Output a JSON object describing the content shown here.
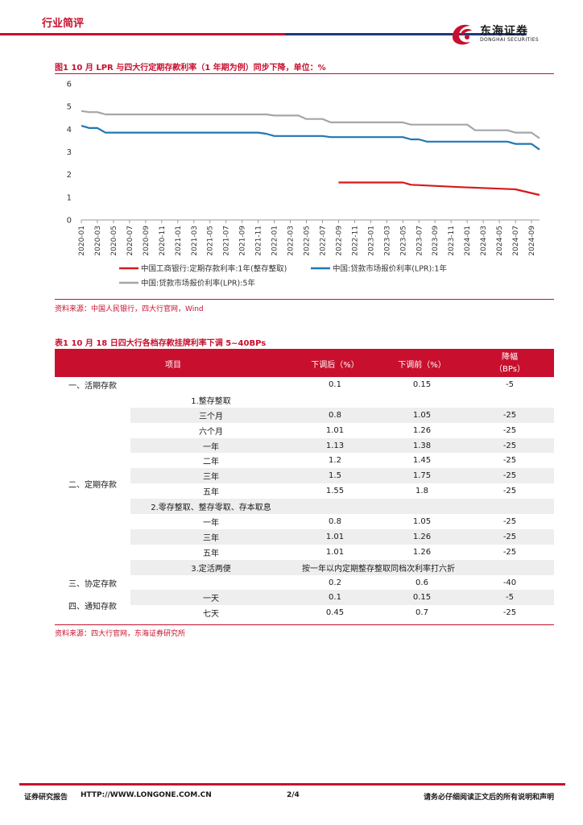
{
  "header": {
    "section": "行业简评",
    "logo_cn": "东海证券",
    "logo_en": "DONGHAI SECURITIES"
  },
  "figure": {
    "title": "图1  10 月 LPR 与四大行定期存款利率（1 年期为例）同步下降，单位：%",
    "source": "资料来源：中国人民银行，四大行官网，Wind"
  },
  "chart_data": {
    "type": "line",
    "ylim": [
      0,
      6
    ],
    "yticks": [
      "0",
      "1",
      "2",
      "3",
      "4",
      "5",
      "6"
    ],
    "xticks": [
      "2020-01",
      "2020-03",
      "2020-05",
      "2020-07",
      "2020-09",
      "2020-11",
      "2021-01",
      "2021-03",
      "2021-05",
      "2021-07",
      "2021-09",
      "2021-11",
      "2022-01",
      "2022-03",
      "2022-05",
      "2022-07",
      "2022-09",
      "2022-11",
      "2023-01",
      "2023-03",
      "2023-05",
      "2023-07",
      "2023-09",
      "2023-11",
      "2024-01",
      "2024-03",
      "2024-05",
      "2024-07",
      "2024-09"
    ],
    "legend_position": "bottom",
    "series": [
      {
        "name": "中国工商银行:定期存款利率:1年(整存整取)",
        "color": "#d7191c",
        "points": [
          [
            "2022-09",
            1.65
          ],
          [
            "2023-05",
            1.65
          ],
          [
            "2023-06",
            1.55
          ],
          [
            "2023-12",
            1.45
          ],
          [
            "2024-07",
            1.35
          ],
          [
            "2024-10",
            1.1
          ]
        ]
      },
      {
        "name": "中国:贷款市场报价利率(LPR):1年",
        "color": "#1f78b4",
        "points": [
          [
            "2020-01",
            4.15
          ],
          [
            "2020-02",
            4.05
          ],
          [
            "2020-03",
            4.05
          ],
          [
            "2020-04",
            3.85
          ],
          [
            "2021-11",
            3.85
          ],
          [
            "2021-12",
            3.8
          ],
          [
            "2022-01",
            3.7
          ],
          [
            "2022-07",
            3.7
          ],
          [
            "2022-08",
            3.65
          ],
          [
            "2023-05",
            3.65
          ],
          [
            "2023-06",
            3.55
          ],
          [
            "2023-07",
            3.55
          ],
          [
            "2023-08",
            3.45
          ],
          [
            "2024-06",
            3.45
          ],
          [
            "2024-07",
            3.35
          ],
          [
            "2024-09",
            3.35
          ],
          [
            "2024-10",
            3.1
          ]
        ]
      },
      {
        "name": "中国:贷款市场报价利率(LPR):5年",
        "color": "#a6a6a6",
        "points": [
          [
            "2020-01",
            4.8
          ],
          [
            "2020-02",
            4.75
          ],
          [
            "2020-03",
            4.75
          ],
          [
            "2020-04",
            4.65
          ],
          [
            "2021-12",
            4.65
          ],
          [
            "2022-01",
            4.6
          ],
          [
            "2022-04",
            4.6
          ],
          [
            "2022-05",
            4.45
          ],
          [
            "2022-07",
            4.45
          ],
          [
            "2022-08",
            4.3
          ],
          [
            "2023-05",
            4.3
          ],
          [
            "2023-06",
            4.2
          ],
          [
            "2023-12",
            4.2
          ],
          [
            "2024-01",
            4.2
          ],
          [
            "2024-02",
            3.95
          ],
          [
            "2024-06",
            3.95
          ],
          [
            "2024-07",
            3.85
          ],
          [
            "2024-09",
            3.85
          ],
          [
            "2024-10",
            3.6
          ]
        ]
      }
    ]
  },
  "table": {
    "title": "表1  10 月 18 日四大行各档存款挂牌利率下调 5~40BPs",
    "headers": [
      "项目",
      "下调后（%）",
      "下调前（%）",
      "降幅\n（BPs）"
    ],
    "rows": [
      {
        "cat": "一、活期存款",
        "item": "",
        "after": "0.1",
        "before": "0.15",
        "cut": "-5",
        "shade": false
      },
      {
        "cat": "",
        "item": "1.整存整取",
        "after": "",
        "before": "",
        "cut": "",
        "shade": false
      },
      {
        "cat": "",
        "item": "三个月",
        "after": "0.8",
        "before": "1.05",
        "cut": "-25",
        "shade": true
      },
      {
        "cat": "",
        "item": "六个月",
        "after": "1.01",
        "before": "1.26",
        "cut": "-25",
        "shade": false
      },
      {
        "cat": "",
        "item": "一年",
        "after": "1.13",
        "before": "1.38",
        "cut": "-25",
        "shade": true
      },
      {
        "cat": "",
        "item": "二年",
        "after": "1.2",
        "before": "1.45",
        "cut": "-25",
        "shade": false
      },
      {
        "cat": "二、定期存款",
        "item": "三年",
        "after": "1.5",
        "before": "1.75",
        "cut": "-25",
        "shade": true
      },
      {
        "cat": "",
        "item": "五年",
        "after": "1.55",
        "before": "1.8",
        "cut": "-25",
        "shade": false
      },
      {
        "cat": "",
        "item": "2.零存整取、整存零取、存本取息",
        "after": "",
        "before": "",
        "cut": "",
        "shade": true
      },
      {
        "cat": "",
        "item": "一年",
        "after": "0.8",
        "before": "1.05",
        "cut": "-25",
        "shade": false
      },
      {
        "cat": "",
        "item": "三年",
        "after": "1.01",
        "before": "1.26",
        "cut": "-25",
        "shade": true
      },
      {
        "cat": "",
        "item": "五年",
        "after": "1.01",
        "before": "1.26",
        "cut": "-25",
        "shade": false
      },
      {
        "cat": "",
        "item": "3.定活两便",
        "after": "按一年以内定期整存整取同档次利率打六折",
        "before": "",
        "cut": "",
        "shade": true
      },
      {
        "cat": "三、协定存款",
        "item": "",
        "after": "0.2",
        "before": "0.6",
        "cut": "-40",
        "shade": false
      },
      {
        "cat": "四、通知存款",
        "item": "一天",
        "after": "0.1",
        "before": "0.15",
        "cut": "-5",
        "shade": true
      },
      {
        "cat": "",
        "item": "七天",
        "after": "0.45",
        "before": "0.7",
        "cut": "-25",
        "shade": false
      }
    ],
    "source": "资料来源：四大行官网，东海证券研究所"
  },
  "footer": {
    "left": "证券研究报告",
    "url": "HTTP://WWW.LONGONE.COM.CN",
    "page": "2/4",
    "right": "请务必仔细阅读正文后的所有说明和声明"
  }
}
